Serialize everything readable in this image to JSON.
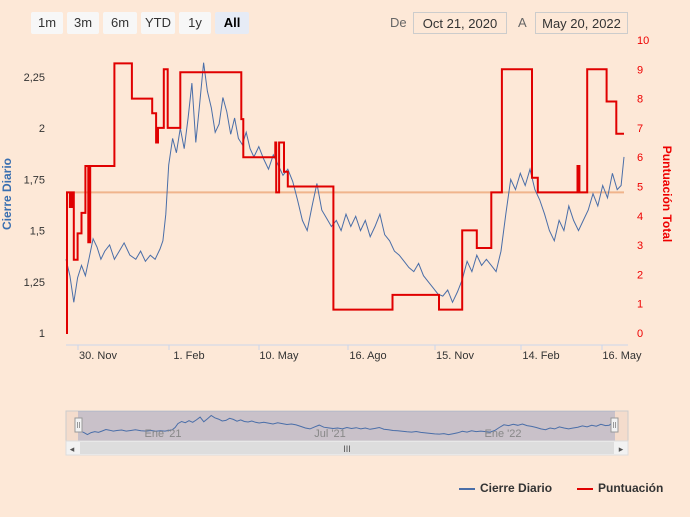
{
  "range_selector": {
    "buttons": [
      "1m",
      "3m",
      "6m",
      "YTD",
      "1y",
      "All"
    ],
    "active": "All"
  },
  "date_range": {
    "from_label": "De",
    "from_value": "Oct 21, 2020",
    "to_label": "A",
    "to_value": "May 20, 2022"
  },
  "navigator": {
    "labels": [
      "Ene '21",
      "Jul '21",
      "Ene '22"
    ],
    "scroll_glyph": "III"
  },
  "colors": {
    "price": "#4a6ea8",
    "score": "#e00000",
    "reference": "#f0b48c"
  },
  "chart_data": {
    "type": "line",
    "title": "",
    "xlabel": "",
    "x_ticks": [
      "30. Nov",
      "1. Feb",
      "10. May",
      "16. Ago",
      "15. Nov",
      "14. Feb",
      "16. May"
    ],
    "y_left": {
      "label": "Cierre Diario",
      "ticks": [
        "1",
        "1,25",
        "1,5",
        "1,75",
        "2",
        "2,25"
      ],
      "ylim": [
        1.0,
        2.35
      ]
    },
    "y_right": {
      "label": "Puntuación Total",
      "ticks": [
        "0",
        "1",
        "2",
        "3",
        "4",
        "5",
        "6",
        "7",
        "8",
        "9",
        "10"
      ],
      "ylim": [
        0,
        10
      ]
    },
    "x_range": [
      "2020-10-21",
      "2022-05-20"
    ],
    "reference_line": {
      "axis": "right",
      "value": 4.8
    },
    "series": [
      {
        "name": "Cierre Diario",
        "axis": "left",
        "points": [
          [
            "2020-10-21",
            1.36
          ],
          [
            "2020-10-25",
            1.28
          ],
          [
            "2020-10-29",
            1.15
          ],
          [
            "2020-11-02",
            1.27
          ],
          [
            "2020-11-06",
            1.33
          ],
          [
            "2020-11-10",
            1.28
          ],
          [
            "2020-11-14",
            1.37
          ],
          [
            "2020-11-18",
            1.46
          ],
          [
            "2020-11-22",
            1.42
          ],
          [
            "2020-11-26",
            1.36
          ],
          [
            "2020-11-30",
            1.4
          ],
          [
            "2020-12-05",
            1.43
          ],
          [
            "2020-12-10",
            1.36
          ],
          [
            "2020-12-15",
            1.4
          ],
          [
            "2020-12-20",
            1.44
          ],
          [
            "2020-12-26",
            1.38
          ],
          [
            "2021-01-01",
            1.36
          ],
          [
            "2021-01-06",
            1.4
          ],
          [
            "2021-01-11",
            1.35
          ],
          [
            "2021-01-16",
            1.38
          ],
          [
            "2021-01-21",
            1.36
          ],
          [
            "2021-01-26",
            1.41
          ],
          [
            "2021-01-29",
            1.45
          ],
          [
            "2021-02-01",
            1.58
          ],
          [
            "2021-02-04",
            1.82
          ],
          [
            "2021-02-08",
            1.95
          ],
          [
            "2021-02-12",
            1.88
          ],
          [
            "2021-02-16",
            2.0
          ],
          [
            "2021-02-20",
            1.9
          ],
          [
            "2021-02-24",
            2.05
          ],
          [
            "2021-02-28",
            2.22
          ],
          [
            "2021-03-04",
            1.93
          ],
          [
            "2021-03-08",
            2.12
          ],
          [
            "2021-03-12",
            2.32
          ],
          [
            "2021-03-16",
            2.18
          ],
          [
            "2021-03-20",
            2.1
          ],
          [
            "2021-03-24",
            1.98
          ],
          [
            "2021-03-28",
            2.02
          ],
          [
            "2021-04-01",
            2.15
          ],
          [
            "2021-04-05",
            2.08
          ],
          [
            "2021-04-09",
            1.97
          ],
          [
            "2021-04-13",
            2.05
          ],
          [
            "2021-04-17",
            1.95
          ],
          [
            "2021-04-21",
            1.92
          ],
          [
            "2021-04-25",
            1.98
          ],
          [
            "2021-04-29",
            1.9
          ],
          [
            "2021-05-03",
            1.86
          ],
          [
            "2021-05-08",
            1.91
          ],
          [
            "2021-05-13",
            1.85
          ],
          [
            "2021-05-18",
            1.8
          ],
          [
            "2021-05-23",
            1.87
          ],
          [
            "2021-05-28",
            1.82
          ],
          [
            "2021-06-02",
            1.77
          ],
          [
            "2021-06-07",
            1.8
          ],
          [
            "2021-06-12",
            1.74
          ],
          [
            "2021-06-17",
            1.65
          ],
          [
            "2021-06-22",
            1.55
          ],
          [
            "2021-06-27",
            1.5
          ],
          [
            "2021-07-02",
            1.62
          ],
          [
            "2021-07-07",
            1.73
          ],
          [
            "2021-07-12",
            1.6
          ],
          [
            "2021-07-17",
            1.56
          ],
          [
            "2021-07-22",
            1.52
          ],
          [
            "2021-07-27",
            1.55
          ],
          [
            "2021-08-01",
            1.5
          ],
          [
            "2021-08-06",
            1.58
          ],
          [
            "2021-08-11",
            1.52
          ],
          [
            "2021-08-16",
            1.57
          ],
          [
            "2021-08-21",
            1.5
          ],
          [
            "2021-08-26",
            1.55
          ],
          [
            "2021-08-31",
            1.47
          ],
          [
            "2021-09-05",
            1.52
          ],
          [
            "2021-09-10",
            1.58
          ],
          [
            "2021-09-15",
            1.48
          ],
          [
            "2021-09-20",
            1.45
          ],
          [
            "2021-09-25",
            1.4
          ],
          [
            "2021-09-30",
            1.38
          ],
          [
            "2021-10-05",
            1.35
          ],
          [
            "2021-10-10",
            1.32
          ],
          [
            "2021-10-15",
            1.3
          ],
          [
            "2021-10-20",
            1.34
          ],
          [
            "2021-10-25",
            1.28
          ],
          [
            "2021-10-30",
            1.25
          ],
          [
            "2021-11-04",
            1.22
          ],
          [
            "2021-11-09",
            1.19
          ],
          [
            "2021-11-14",
            1.18
          ],
          [
            "2021-11-19",
            1.21
          ],
          [
            "2021-11-24",
            1.15
          ],
          [
            "2021-11-29",
            1.2
          ],
          [
            "2021-12-04",
            1.26
          ],
          [
            "2021-12-09",
            1.35
          ],
          [
            "2021-12-14",
            1.3
          ],
          [
            "2021-12-19",
            1.38
          ],
          [
            "2021-12-24",
            1.33
          ],
          [
            "2021-12-29",
            1.36
          ],
          [
            "2022-01-03",
            1.33
          ],
          [
            "2022-01-08",
            1.3
          ],
          [
            "2022-01-13",
            1.4
          ],
          [
            "2022-01-18",
            1.58
          ],
          [
            "2022-01-23",
            1.75
          ],
          [
            "2022-01-28",
            1.7
          ],
          [
            "2022-02-02",
            1.78
          ],
          [
            "2022-02-07",
            1.72
          ],
          [
            "2022-02-12",
            1.8
          ],
          [
            "2022-02-17",
            1.7
          ],
          [
            "2022-02-22",
            1.65
          ],
          [
            "2022-02-27",
            1.58
          ],
          [
            "2022-03-04",
            1.5
          ],
          [
            "2022-03-09",
            1.45
          ],
          [
            "2022-03-14",
            1.55
          ],
          [
            "2022-03-19",
            1.5
          ],
          [
            "2022-03-24",
            1.62
          ],
          [
            "2022-03-29",
            1.55
          ],
          [
            "2022-04-03",
            1.5
          ],
          [
            "2022-04-08",
            1.55
          ],
          [
            "2022-04-13",
            1.6
          ],
          [
            "2022-04-18",
            1.68
          ],
          [
            "2022-04-23",
            1.62
          ],
          [
            "2022-04-28",
            1.72
          ],
          [
            "2022-05-03",
            1.66
          ],
          [
            "2022-05-08",
            1.78
          ],
          [
            "2022-05-13",
            1.7
          ],
          [
            "2022-05-17",
            1.72
          ],
          [
            "2022-05-20",
            1.86
          ]
        ]
      },
      {
        "name": "Puntuación",
        "axis": "right",
        "step": true,
        "points": [
          [
            "2020-10-21",
            0
          ],
          [
            "2020-10-22",
            4.8
          ],
          [
            "2020-10-25",
            4.3
          ],
          [
            "2020-10-27",
            4.8
          ],
          [
            "2020-10-29",
            2.5
          ],
          [
            "2020-11-02",
            3.4
          ],
          [
            "2020-11-06",
            4.1
          ],
          [
            "2020-11-10",
            5.7
          ],
          [
            "2020-11-13",
            3.1
          ],
          [
            "2020-11-15",
            5.7
          ],
          [
            "2020-12-10",
            9.2
          ],
          [
            "2020-12-28",
            8.0
          ],
          [
            "2021-01-18",
            7.5
          ],
          [
            "2021-01-22",
            6.5
          ],
          [
            "2021-01-24",
            7.0
          ],
          [
            "2021-01-30",
            9.0
          ],
          [
            "2021-02-03",
            7.0
          ],
          [
            "2021-02-16",
            8.9
          ],
          [
            "2021-04-20",
            7.3
          ],
          [
            "2021-04-22",
            6.0
          ],
          [
            "2021-05-25",
            6.5
          ],
          [
            "2021-05-26",
            4.8
          ],
          [
            "2021-05-29",
            6.5
          ],
          [
            "2021-06-03",
            5.5
          ],
          [
            "2021-06-07",
            5.0
          ],
          [
            "2021-07-24",
            0.8
          ],
          [
            "2021-09-23",
            1.3
          ],
          [
            "2021-11-10",
            0.8
          ],
          [
            "2021-12-04",
            3.5
          ],
          [
            "2021-12-19",
            2.9
          ],
          [
            "2022-01-03",
            4.8
          ],
          [
            "2022-01-14",
            9.0
          ],
          [
            "2022-02-14",
            5.3
          ],
          [
            "2022-02-20",
            4.8
          ],
          [
            "2022-04-02",
            5.7
          ],
          [
            "2022-04-04",
            4.8
          ],
          [
            "2022-04-12",
            9.0
          ],
          [
            "2022-05-02",
            7.9
          ],
          [
            "2022-05-12",
            6.8
          ]
        ]
      }
    ],
    "legend": {
      "position": "bottom-right",
      "entries": [
        "Cierre Diario",
        "Puntuación"
      ]
    }
  }
}
